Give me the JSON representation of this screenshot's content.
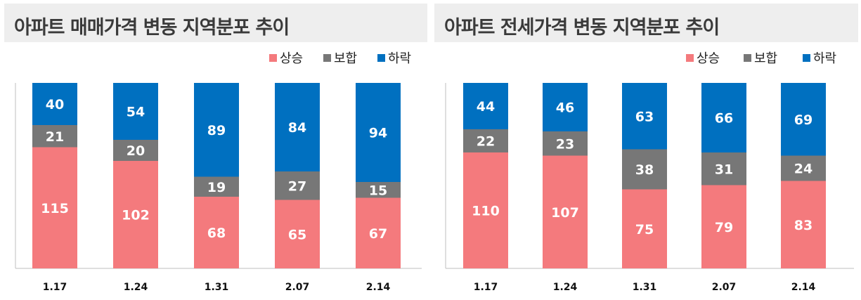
{
  "colors": {
    "up": "#f47a7d",
    "flat": "#777777",
    "down": "#0070c0"
  },
  "chart_data": [
    {
      "type": "bar",
      "stacked": true,
      "title": "아파트 매매가격 변동 지역분포 추이",
      "categories": [
        "1.17",
        "1.24",
        "1.31",
        "2.07",
        "2.14"
      ],
      "series": [
        {
          "name": "상승",
          "values": [
            115,
            102,
            68,
            65,
            67
          ]
        },
        {
          "name": "보합",
          "values": [
            21,
            20,
            19,
            27,
            15
          ]
        },
        {
          "name": "하락",
          "values": [
            40,
            54,
            89,
            84,
            94
          ]
        }
      ],
      "legend": "top-right",
      "ylim": [
        0,
        176
      ],
      "grid": false
    },
    {
      "type": "bar",
      "stacked": true,
      "title": "아파트 전세가격 변동 지역분포 추이",
      "categories": [
        "1.17",
        "1.24",
        "1.31",
        "2.07",
        "2.14"
      ],
      "series": [
        {
          "name": "상승",
          "values": [
            110,
            107,
            75,
            79,
            83
          ]
        },
        {
          "name": "보합",
          "values": [
            22,
            23,
            38,
            31,
            24
          ]
        },
        {
          "name": "하락",
          "values": [
            44,
            46,
            63,
            66,
            69
          ]
        }
      ],
      "legend": "top-right",
      "ylim": [
        0,
        176
      ],
      "grid": false
    }
  ]
}
